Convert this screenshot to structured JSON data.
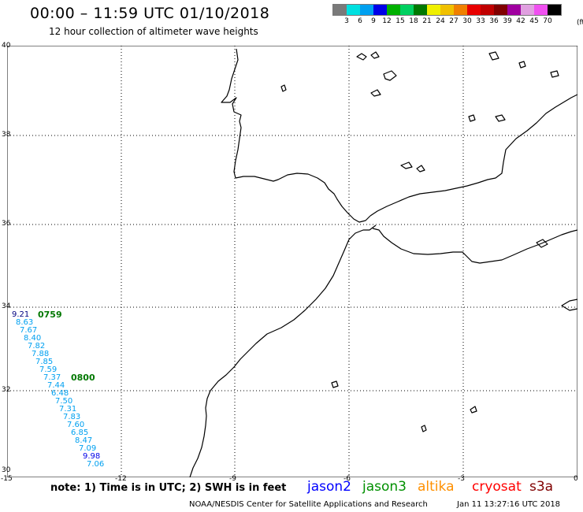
{
  "title": "00:00 – 11:59 UTC 01/10/2018",
  "subtitle": "12 hour collection of altimeter wave heights",
  "scale": {
    "unit": "(ft)",
    "colors": [
      "#7a7a7a",
      "#00e0e0",
      "#00a0f0",
      "#0000e8",
      "#00b000",
      "#00d060",
      "#007800",
      "#f0f000",
      "#f0c000",
      "#f08000",
      "#e80000",
      "#c00000",
      "#800000",
      "#a000a0",
      "#e0a0e0",
      "#f050f0",
      "#000000"
    ],
    "labels": [
      "3",
      "6",
      "9",
      "12",
      "15",
      "18",
      "21",
      "24",
      "27",
      "30",
      "33",
      "36",
      "39",
      "42",
      "45",
      "70"
    ]
  },
  "axes": {
    "lon_ticks": [
      "-15",
      "-12",
      "-9",
      "-6",
      "-3",
      "0"
    ],
    "lat_ticks": [
      "30",
      "32",
      "34",
      "36",
      "38",
      "40"
    ]
  },
  "track": {
    "times": [
      "0759",
      "0800"
    ],
    "heights": [
      "9.21",
      "8.63",
      "7.67",
      "8.40",
      "7.82",
      "7.88",
      "7.85",
      "7.59",
      "7.37",
      "7.44",
      "6.48",
      "7.50",
      "7.31",
      "7.83",
      "7.60",
      "6.85",
      "8.47",
      "7.09",
      "9.98",
      "7.06"
    ]
  },
  "note": "note: 1) Time is in UTC; 2) SWH is in feet",
  "satellites": [
    {
      "name": "jason2",
      "color": "#0000ff"
    },
    {
      "name": "jason3",
      "color": "#009000"
    },
    {
      "name": "altika",
      "color": "#ff9000"
    },
    {
      "name": "cryosat",
      "color": "#ff0000"
    },
    {
      "name": "s3a",
      "color": "#800000"
    }
  ],
  "credit": "NOAA/NESDIS Center for Satellite Applications and Research",
  "timestamp": "Jan 11 13:27:16 UTC 2018"
}
